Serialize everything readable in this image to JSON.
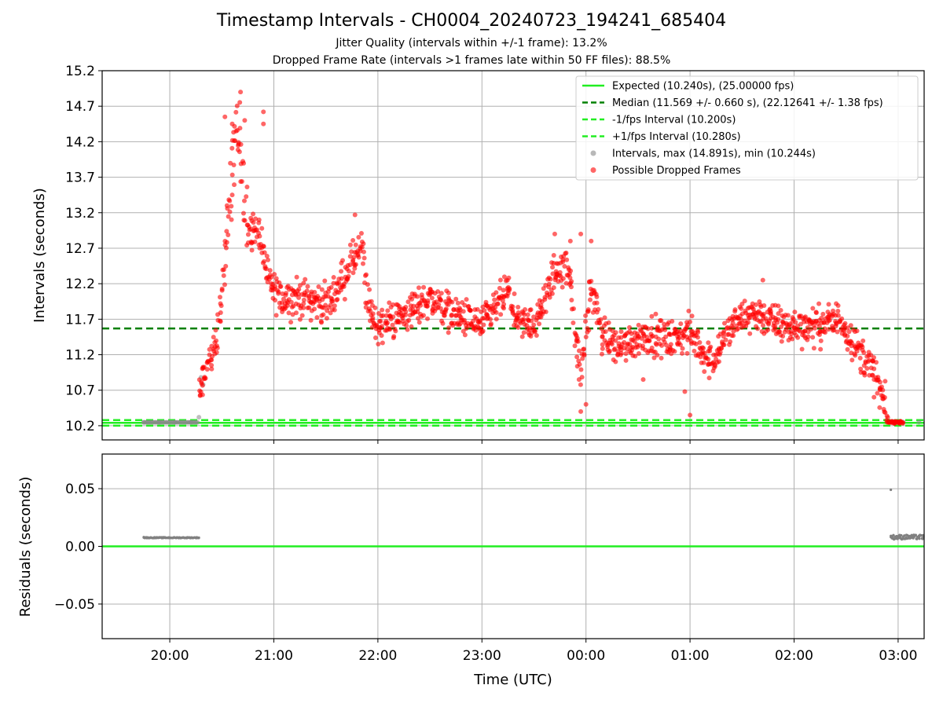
{
  "chart_data": [
    {
      "type": "scatter",
      "title": "Timestamp Intervals - CH0004_20240723_194241_685404",
      "subtitles": [
        "Jitter Quality (intervals within +/-1 frame): 13.2%",
        "Dropped Frame Rate (intervals >1 frames late within 50 FF files): 88.5%"
      ],
      "xlabel": "",
      "ylabel": "Intervals (seconds)",
      "xlim_hours": [
        19.35,
        27.25
      ],
      "ylim": [
        10.0,
        15.2
      ],
      "yticks": [
        "10.2",
        "10.7",
        "11.2",
        "11.7",
        "12.2",
        "12.7",
        "13.2",
        "13.7",
        "14.2",
        "14.7",
        "15.2"
      ],
      "grid": true,
      "legend_position": "top-right",
      "series": [
        {
          "name": "Expected (10.240s), (25.00000 fps)",
          "kind": "hline",
          "y": 10.24,
          "color": "#22ee22",
          "style": "solid"
        },
        {
          "name": "Median (11.569 +/- 0.660 s), (22.12641 +/- 1.38 fps)",
          "kind": "hline",
          "y": 11.569,
          "color": "#008000",
          "style": "dashed"
        },
        {
          "name": "-1/fps Interval (10.200s)",
          "kind": "hline",
          "y": 10.2,
          "color": "#22ee22",
          "style": "dashed"
        },
        {
          "name": "+1/fps Interval (10.280s)",
          "kind": "hline",
          "y": 10.28,
          "color": "#22ee22",
          "style": "dashed"
        },
        {
          "name": "Intervals, max (14.891s), min (10.244s)",
          "kind": "scatter",
          "color": "#888888",
          "points": [
            [
              19.75,
              10.248
            ],
            [
              19.9,
              10.248
            ],
            [
              20.05,
              10.248
            ],
            [
              20.2,
              10.248
            ],
            [
              20.28,
              10.32
            ],
            [
              20.3,
              10.88
            ],
            [
              20.32,
              10.78
            ],
            [
              26.95,
              10.26
            ],
            [
              27.05,
              10.252
            ],
            [
              27.2,
              10.25
            ]
          ]
        },
        {
          "name": "Possible Dropped Frames",
          "kind": "scatter",
          "color": "#ff0000",
          "trend": [
            [
              20.28,
              10.6
            ],
            [
              20.35,
              11.0
            ],
            [
              20.45,
              11.4
            ],
            [
              20.55,
              12.8
            ],
            [
              20.6,
              14.0
            ],
            [
              20.68,
              14.3
            ],
            [
              20.75,
              12.9
            ],
            [
              20.85,
              13.0
            ],
            [
              20.95,
              12.2
            ],
            [
              21.05,
              12.0
            ],
            [
              21.3,
              12.0
            ],
            [
              21.5,
              11.9
            ],
            [
              21.6,
              12.1
            ],
            [
              21.75,
              12.5
            ],
            [
              21.85,
              12.7
            ],
            [
              21.9,
              11.9
            ],
            [
              22.0,
              11.6
            ],
            [
              22.3,
              11.8
            ],
            [
              22.5,
              12.0
            ],
            [
              22.7,
              11.8
            ],
            [
              23.0,
              11.6
            ],
            [
              23.25,
              12.1
            ],
            [
              23.35,
              11.6
            ],
            [
              23.55,
              11.7
            ],
            [
              23.7,
              12.4
            ],
            [
              23.85,
              12.4
            ],
            [
              23.9,
              11.4
            ],
            [
              23.95,
              10.9
            ],
            [
              24.05,
              12.2
            ],
            [
              24.15,
              11.5
            ],
            [
              24.3,
              11.3
            ],
            [
              24.6,
              11.5
            ],
            [
              24.8,
              11.4
            ],
            [
              25.0,
              11.5
            ],
            [
              25.2,
              11.1
            ],
            [
              25.4,
              11.6
            ],
            [
              25.6,
              11.8
            ],
            [
              25.9,
              11.6
            ],
            [
              26.2,
              11.6
            ],
            [
              26.45,
              11.7
            ],
            [
              26.6,
              11.3
            ],
            [
              26.75,
              11.0
            ],
            [
              26.85,
              10.6
            ],
            [
              26.9,
              10.25
            ],
            [
              27.05,
              10.25
            ]
          ],
          "outliers": [
            [
              20.53,
              14.55
            ],
            [
              20.6,
              14.45
            ],
            [
              20.68,
              14.9
            ],
            [
              20.72,
              14.5
            ],
            [
              20.9,
              14.62
            ],
            [
              20.9,
              14.45
            ],
            [
              20.6,
              13.45
            ],
            [
              20.55,
              13.3
            ],
            [
              21.78,
              13.17
            ],
            [
              23.7,
              12.9
            ],
            [
              23.85,
              12.8
            ],
            [
              23.95,
              12.9
            ],
            [
              24.05,
              12.8
            ],
            [
              23.95,
              10.4
            ],
            [
              24.0,
              10.5
            ],
            [
              25.0,
              10.35
            ],
            [
              24.95,
              10.68
            ],
            [
              25.7,
              12.25
            ],
            [
              24.55,
              10.85
            ]
          ]
        }
      ]
    },
    {
      "type": "scatter",
      "ylabel": "Residuals (seconds)",
      "xlabel": "Time (UTC)",
      "xlim_hours": [
        19.35,
        27.25
      ],
      "ylim": [
        -0.08,
        0.08
      ],
      "yticks": [
        "−0.05",
        "0.00",
        "0.05"
      ],
      "xticks": [
        "20:00",
        "21:00",
        "22:00",
        "23:00",
        "00:00",
        "01:00",
        "02:00",
        "03:00"
      ],
      "grid": true,
      "series": [
        {
          "name": "zero",
          "kind": "hline",
          "y": 0.0,
          "color": "#22ee22",
          "style": "solid"
        },
        {
          "name": "residuals",
          "kind": "scatter",
          "color": "#808080",
          "points": [
            [
              19.75,
              0.008
            ],
            [
              19.8,
              0.0075
            ],
            [
              19.9,
              0.0075
            ],
            [
              20.0,
              0.0075
            ],
            [
              20.1,
              0.0075
            ],
            [
              20.2,
              0.0075
            ],
            [
              20.28,
              0.0075
            ],
            [
              26.93,
              0.049
            ],
            [
              26.93,
              0.009
            ],
            [
              27.0,
              0.008
            ],
            [
              27.1,
              0.008
            ],
            [
              27.2,
              0.008
            ],
            [
              27.25,
              0.008
            ]
          ]
        }
      ]
    }
  ]
}
